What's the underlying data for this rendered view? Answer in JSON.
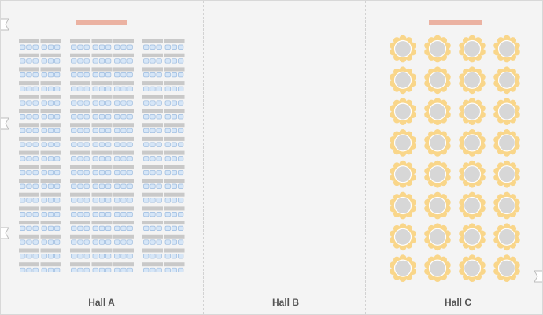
{
  "floor_plan": {
    "halls": [
      {
        "label": "Hall A",
        "layout": "classroom",
        "rows": 17,
        "blocks": [
          2,
          3,
          2
        ],
        "seats_per_table": 3
      },
      {
        "label": "Hall B",
        "layout": "empty"
      },
      {
        "label": "Hall C",
        "layout": "banquet",
        "table_rows": 8,
        "table_cols": 4,
        "chairs_per_table": 10
      }
    ],
    "colors": {
      "background": "#f4f4f4",
      "stage": "#ebb2a2",
      "table_rect": "#c9c9c9",
      "chair_blue": "#d6e6f7",
      "chair_blue_stroke": "#9bbbe0",
      "round_table": "#d7d7d7",
      "round_chair": "#f9d68a",
      "door": "#bdbdbd"
    }
  }
}
